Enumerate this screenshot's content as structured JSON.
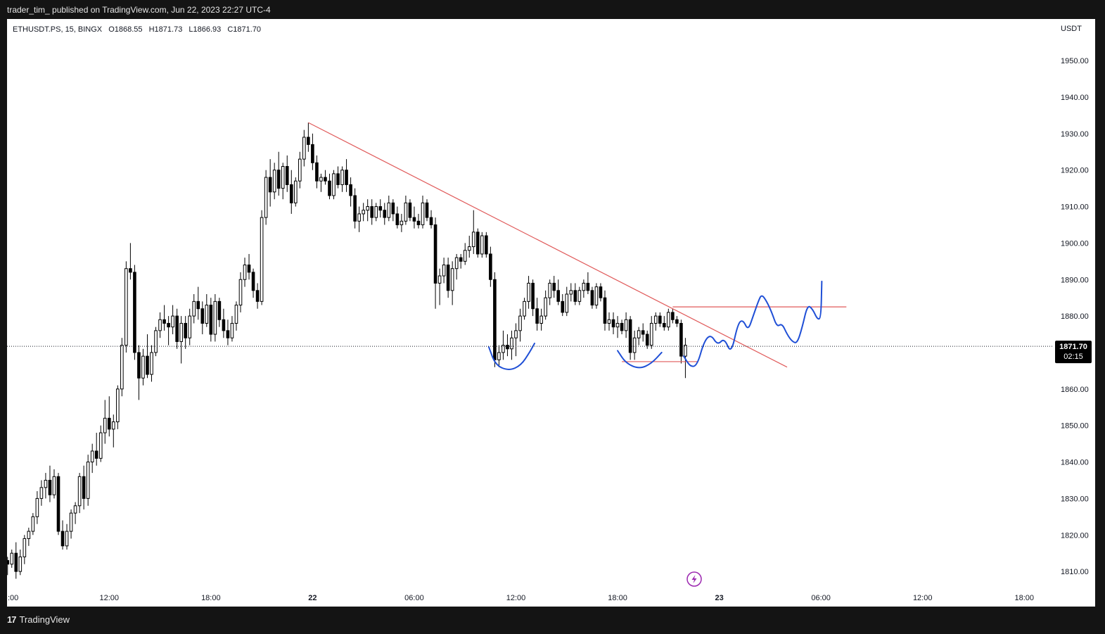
{
  "header": {
    "publish_text": "trader_tim_  published on TradingView.com, Jun 22, 2023 22:27 UTC-4"
  },
  "legend": {
    "symbol": "ETHUSDT.PS, 15, BINGX",
    "open": "O1868.55",
    "high": "H1871.73",
    "low": "L1866.93",
    "close": "C1871.70"
  },
  "price_scale": {
    "currency": "USDT"
  },
  "price_tag": {
    "price": "1871.70",
    "countdown": "02:15"
  },
  "footer": {
    "brand": "TradingView",
    "logo_icon": "tradingview-logo-icon"
  },
  "colors": {
    "up": "#ffffff",
    "down": "#000000",
    "candle_border": "#000000",
    "trendline": "#e05a5a",
    "level_line": "#e05a5a",
    "drawing": "#1f4fd6",
    "price_tag_bg": "#000000",
    "event_icon": "#9c27b0"
  },
  "chart_data": {
    "type": "candlestick",
    "symbol": "ETHUSDT.PS",
    "timeframe": "15",
    "exchange": "BINGX",
    "x_tick_labels": [
      ":00",
      "12:00",
      "18:00",
      "22",
      "06:00",
      "12:00",
      "18:00",
      "23",
      "06:00",
      "12:00",
      "18:00"
    ],
    "x_tick_hours": [
      6,
      12,
      18,
      24,
      30,
      36,
      42,
      48,
      54,
      60,
      66
    ],
    "x_range_hours": [
      5.97,
      67.4
    ],
    "y_ticks": [
      "1810.00",
      "1820.00",
      "1830.00",
      "1840.00",
      "1850.00",
      "1860.00",
      "1870.00",
      "1880.00",
      "1890.00",
      "1900.00",
      "1910.00",
      "1920.00",
      "1930.00",
      "1940.00",
      "1950.00"
    ],
    "y_tick_values": [
      1810,
      1820,
      1830,
      1840,
      1850,
      1860,
      1870,
      1880,
      1890,
      1900,
      1910,
      1920,
      1930,
      1940,
      1950
    ],
    "ylim": [
      1805.2,
      1961.4
    ],
    "last_price": 1871.7,
    "candle_interval_hours": 0.25,
    "candles": [
      [
        6.0,
        1813,
        1814,
        1809,
        1812
      ],
      [
        6.25,
        1812,
        1816,
        1811,
        1815
      ],
      [
        6.5,
        1815,
        1818,
        1808,
        1810
      ],
      [
        6.75,
        1810,
        1816,
        1809,
        1814
      ],
      [
        7.0,
        1814,
        1820,
        1812,
        1819
      ],
      [
        7.25,
        1819,
        1822,
        1817,
        1821
      ],
      [
        7.5,
        1821,
        1826,
        1820,
        1825
      ],
      [
        7.75,
        1825,
        1832,
        1823,
        1830
      ],
      [
        8.0,
        1830,
        1835,
        1828,
        1833
      ],
      [
        8.25,
        1833,
        1837,
        1830,
        1835
      ],
      [
        8.5,
        1835,
        1839,
        1829,
        1831
      ],
      [
        8.75,
        1831,
        1838,
        1830,
        1836
      ],
      [
        9.0,
        1836,
        1837,
        1820,
        1821
      ],
      [
        9.25,
        1821,
        1824,
        1816,
        1817
      ],
      [
        9.5,
        1817,
        1823,
        1816,
        1821
      ],
      [
        9.75,
        1821,
        1827,
        1819,
        1826
      ],
      [
        10.0,
        1826,
        1829,
        1823,
        1828
      ],
      [
        10.25,
        1828,
        1837,
        1826,
        1836
      ],
      [
        10.5,
        1836,
        1839,
        1827,
        1830
      ],
      [
        10.75,
        1830,
        1842,
        1828,
        1840
      ],
      [
        11.0,
        1840,
        1845,
        1837,
        1843
      ],
      [
        11.25,
        1843,
        1848,
        1839,
        1841
      ],
      [
        11.5,
        1841,
        1850,
        1840,
        1848
      ],
      [
        11.75,
        1848,
        1857,
        1845,
        1852
      ],
      [
        12.0,
        1852,
        1858,
        1847,
        1849
      ],
      [
        12.25,
        1849,
        1853,
        1844,
        1851
      ],
      [
        12.5,
        1851,
        1861,
        1849,
        1860
      ],
      [
        12.75,
        1860,
        1874,
        1858,
        1872
      ],
      [
        13.0,
        1872,
        1895,
        1870,
        1893
      ],
      [
        13.25,
        1893,
        1900,
        1890,
        1892
      ],
      [
        13.5,
        1892,
        1894,
        1868,
        1870
      ],
      [
        13.75,
        1870,
        1872,
        1857,
        1863
      ],
      [
        14.0,
        1863,
        1871,
        1861,
        1869
      ],
      [
        14.25,
        1869,
        1875,
        1863,
        1864
      ],
      [
        14.5,
        1864,
        1872,
        1862,
        1870
      ],
      [
        14.75,
        1870,
        1877,
        1869,
        1876
      ],
      [
        15.0,
        1876,
        1881,
        1874,
        1879
      ],
      [
        15.25,
        1879,
        1883,
        1876,
        1878
      ],
      [
        15.5,
        1878,
        1880,
        1872,
        1877
      ],
      [
        15.75,
        1877,
        1883,
        1875,
        1880
      ],
      [
        16.0,
        1880,
        1882,
        1871,
        1873
      ],
      [
        16.25,
        1873,
        1880,
        1867,
        1878
      ],
      [
        16.5,
        1878,
        1880,
        1871,
        1874
      ],
      [
        16.75,
        1874,
        1882,
        1872,
        1880
      ],
      [
        17.0,
        1880,
        1886,
        1878,
        1884
      ],
      [
        17.25,
        1884,
        1888,
        1879,
        1882
      ],
      [
        17.5,
        1882,
        1884,
        1875,
        1878
      ],
      [
        17.75,
        1878,
        1886,
        1877,
        1883
      ],
      [
        18.0,
        1883,
        1885,
        1873,
        1875
      ],
      [
        18.25,
        1875,
        1886,
        1873,
        1884
      ],
      [
        18.5,
        1884,
        1885,
        1877,
        1879
      ],
      [
        18.75,
        1879,
        1882,
        1874,
        1876
      ],
      [
        19.0,
        1876,
        1879,
        1872,
        1874
      ],
      [
        19.25,
        1874,
        1880,
        1873,
        1878
      ],
      [
        19.5,
        1878,
        1884,
        1876,
        1883
      ],
      [
        19.75,
        1883,
        1892,
        1881,
        1890
      ],
      [
        20.0,
        1890,
        1896,
        1888,
        1894
      ],
      [
        20.25,
        1894,
        1897,
        1890,
        1892
      ],
      [
        20.5,
        1892,
        1893,
        1885,
        1887
      ],
      [
        20.75,
        1887,
        1889,
        1882,
        1884
      ],
      [
        21.0,
        1884,
        1909,
        1883,
        1907
      ],
      [
        21.25,
        1907,
        1920,
        1905,
        1918
      ],
      [
        21.5,
        1918,
        1923,
        1910,
        1914
      ],
      [
        21.75,
        1914,
        1922,
        1912,
        1920
      ],
      [
        22.0,
        1920,
        1925,
        1913,
        1915
      ],
      [
        22.25,
        1915,
        1922,
        1912,
        1921
      ],
      [
        22.5,
        1921,
        1924,
        1914,
        1916
      ],
      [
        22.75,
        1916,
        1920,
        1908,
        1911
      ],
      [
        23.0,
        1911,
        1918,
        1910,
        1917
      ],
      [
        23.25,
        1917,
        1925,
        1915,
        1923
      ],
      [
        23.5,
        1923,
        1931,
        1921,
        1929
      ],
      [
        23.75,
        1929,
        1933,
        1925,
        1927
      ],
      [
        24.0,
        1927,
        1930,
        1920,
        1922
      ],
      [
        24.25,
        1922,
        1924,
        1915,
        1917
      ],
      [
        24.5,
        1917,
        1919,
        1914,
        1918
      ],
      [
        24.75,
        1918,
        1920,
        1916,
        1917
      ],
      [
        25.0,
        1917,
        1919,
        1912,
        1913
      ],
      [
        25.25,
        1913,
        1920,
        1912,
        1919
      ],
      [
        25.5,
        1919,
        1921,
        1915,
        1916
      ],
      [
        25.75,
        1916,
        1921,
        1914,
        1920
      ],
      [
        26.0,
        1920,
        1923,
        1914,
        1916
      ],
      [
        26.25,
        1916,
        1918,
        1910,
        1913
      ],
      [
        26.5,
        1913,
        1915,
        1904,
        1906
      ],
      [
        26.75,
        1906,
        1910,
        1903,
        1908
      ],
      [
        27.0,
        1908,
        1911,
        1906,
        1909
      ],
      [
        27.25,
        1909,
        1912,
        1906,
        1910
      ],
      [
        27.5,
        1910,
        1912,
        1905,
        1907
      ],
      [
        27.75,
        1907,
        1911,
        1906,
        1910
      ],
      [
        28.0,
        1910,
        1912,
        1907,
        1909
      ],
      [
        28.25,
        1909,
        1911,
        1905,
        1907
      ],
      [
        28.5,
        1907,
        1913,
        1906,
        1911
      ],
      [
        28.75,
        1911,
        1912,
        1906,
        1908
      ],
      [
        29.0,
        1908,
        1910,
        1904,
        1905
      ],
      [
        29.25,
        1905,
        1908,
        1903,
        1906
      ],
      [
        29.5,
        1906,
        1913,
        1905,
        1911
      ],
      [
        29.75,
        1911,
        1912,
        1906,
        1907
      ],
      [
        30.0,
        1907,
        1910,
        1904,
        1906
      ],
      [
        30.25,
        1906,
        1908,
        1904,
        1905
      ],
      [
        30.5,
        1905,
        1913,
        1904,
        1911
      ],
      [
        30.75,
        1911,
        1912,
        1906,
        1907
      ],
      [
        31.0,
        1907,
        1909,
        1904,
        1905
      ],
      [
        31.25,
        1905,
        1907,
        1882,
        1889
      ],
      [
        31.5,
        1889,
        1893,
        1883,
        1891
      ],
      [
        31.75,
        1891,
        1896,
        1889,
        1894
      ],
      [
        32.0,
        1894,
        1896,
        1885,
        1887
      ],
      [
        32.25,
        1887,
        1895,
        1883,
        1893
      ],
      [
        32.5,
        1893,
        1897,
        1890,
        1896
      ],
      [
        32.75,
        1896,
        1897,
        1893,
        1895
      ],
      [
        33.0,
        1895,
        1900,
        1894,
        1898
      ],
      [
        33.25,
        1898,
        1902,
        1896,
        1899
      ],
      [
        33.5,
        1899,
        1909,
        1897,
        1903
      ],
      [
        33.75,
        1903,
        1904,
        1896,
        1897
      ],
      [
        34.0,
        1897,
        1903,
        1896,
        1902
      ],
      [
        34.25,
        1902,
        1903,
        1896,
        1897
      ],
      [
        34.5,
        1897,
        1899,
        1888,
        1890
      ],
      [
        34.75,
        1890,
        1892,
        1866,
        1868
      ],
      [
        35.0,
        1868,
        1872,
        1866,
        1870
      ],
      [
        35.25,
        1870,
        1876,
        1868,
        1872
      ],
      [
        35.5,
        1872,
        1875,
        1869,
        1871
      ],
      [
        35.75,
        1871,
        1876,
        1868,
        1874
      ],
      [
        36.0,
        1874,
        1878,
        1869,
        1876
      ],
      [
        36.25,
        1876,
        1882,
        1873,
        1880
      ],
      [
        36.5,
        1880,
        1885,
        1879,
        1884
      ],
      [
        36.75,
        1884,
        1891,
        1882,
        1889
      ],
      [
        37.0,
        1889,
        1890,
        1880,
        1882
      ],
      [
        37.25,
        1882,
        1885,
        1876,
        1878
      ],
      [
        37.5,
        1878,
        1882,
        1876,
        1880
      ],
      [
        37.75,
        1880,
        1887,
        1879,
        1885
      ],
      [
        38.0,
        1885,
        1890,
        1883,
        1889
      ],
      [
        38.25,
        1889,
        1891,
        1885,
        1887
      ],
      [
        38.5,
        1887,
        1890,
        1883,
        1884
      ],
      [
        38.75,
        1884,
        1886,
        1880,
        1881
      ],
      [
        39.0,
        1881,
        1888,
        1880,
        1886
      ],
      [
        39.25,
        1886,
        1889,
        1884,
        1887
      ],
      [
        39.5,
        1887,
        1889,
        1883,
        1884
      ],
      [
        39.75,
        1884,
        1888,
        1883,
        1887
      ],
      [
        40.0,
        1887,
        1890,
        1885,
        1889
      ],
      [
        40.25,
        1889,
        1892,
        1886,
        1887
      ],
      [
        40.5,
        1887,
        1888,
        1882,
        1883
      ],
      [
        40.75,
        1883,
        1889,
        1882,
        1888
      ],
      [
        41.0,
        1888,
        1889,
        1884,
        1885
      ],
      [
        41.25,
        1885,
        1887,
        1876,
        1878
      ],
      [
        41.5,
        1878,
        1881,
        1876,
        1879
      ],
      [
        41.75,
        1879,
        1881,
        1875,
        1877
      ],
      [
        42.0,
        1877,
        1880,
        1874,
        1878
      ],
      [
        42.25,
        1878,
        1879,
        1875,
        1876
      ],
      [
        42.5,
        1876,
        1881,
        1874,
        1879
      ],
      [
        42.75,
        1879,
        1880,
        1868,
        1870
      ],
      [
        43.0,
        1870,
        1876,
        1868,
        1874
      ],
      [
        43.25,
        1874,
        1877,
        1872,
        1876
      ],
      [
        43.5,
        1876,
        1878,
        1873,
        1875
      ],
      [
        43.75,
        1875,
        1876,
        1871,
        1872
      ],
      [
        44.0,
        1872,
        1880,
        1871,
        1878
      ],
      [
        44.25,
        1878,
        1881,
        1876,
        1880
      ],
      [
        44.5,
        1880,
        1881,
        1877,
        1878
      ],
      [
        44.75,
        1878,
        1880,
        1876,
        1877
      ],
      [
        45.0,
        1877,
        1882,
        1876,
        1881
      ],
      [
        45.25,
        1881,
        1882,
        1878,
        1879
      ],
      [
        45.5,
        1879,
        1880,
        1877,
        1878
      ],
      [
        45.75,
        1878,
        1879,
        1867,
        1869
      ],
      [
        46.0,
        1869,
        1874,
        1863,
        1872
      ]
    ],
    "overlays": {
      "trendline": {
        "from": [
          23.75,
          1933
        ],
        "to": [
          52.0,
          1866
        ]
      },
      "resistance_level": {
        "from": [
          45.25,
          1882.5
        ],
        "to": [
          55.5,
          1882.5
        ]
      },
      "support_level": {
        "from": [
          42.25,
          1867.5
        ],
        "to": [
          46.75,
          1867.5
        ]
      }
    },
    "drawings": [
      {
        "name": "left-rounded-bottom",
        "points": [
          [
            34.4,
            1871.5
          ],
          [
            34.8,
            1866.5
          ],
          [
            35.6,
            1865
          ],
          [
            36.3,
            1866.5
          ],
          [
            36.8,
            1870
          ],
          [
            37.1,
            1872.5
          ]
        ]
      },
      {
        "name": "right-rounded-bottom",
        "points": [
          [
            42.0,
            1870.5
          ],
          [
            42.5,
            1867
          ],
          [
            43.3,
            1865.5
          ],
          [
            44.0,
            1867
          ],
          [
            44.6,
            1870
          ]
        ]
      },
      {
        "name": "projected-path",
        "points": [
          [
            45.9,
            1869
          ],
          [
            46.3,
            1866
          ],
          [
            46.7,
            1866.5
          ],
          [
            47.1,
            1873
          ],
          [
            47.5,
            1875
          ],
          [
            47.9,
            1872
          ],
          [
            48.3,
            1874
          ],
          [
            48.7,
            1869.5
          ],
          [
            49.1,
            1878
          ],
          [
            49.4,
            1879
          ],
          [
            49.7,
            1876
          ],
          [
            50.0,
            1880
          ],
          [
            50.3,
            1884
          ],
          [
            50.5,
            1886
          ],
          [
            50.8,
            1884
          ],
          [
            51.1,
            1881
          ],
          [
            51.4,
            1877
          ],
          [
            51.7,
            1878
          ],
          [
            52.0,
            1875
          ],
          [
            52.3,
            1873
          ],
          [
            52.6,
            1872.5
          ],
          [
            52.9,
            1877
          ],
          [
            53.2,
            1883
          ],
          [
            53.5,
            1882
          ],
          [
            53.8,
            1879
          ],
          [
            54.0,
            1879.5
          ],
          [
            54.05,
            1889.5
          ]
        ]
      }
    ]
  }
}
